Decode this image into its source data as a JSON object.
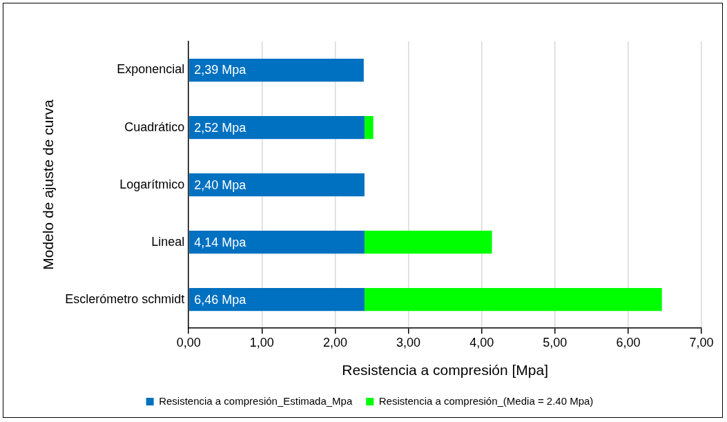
{
  "chart_data": {
    "type": "bar",
    "orientation": "horizontal",
    "stacked": true,
    "xlabel": "Resistencia a compresión [Mpa]",
    "ylabel": "Modelo de ajuste de curva",
    "categories": [
      "Exponencial",
      "Cuadrático",
      "Logarítmico",
      "Lineal",
      "Esclerómetro schmidt"
    ],
    "series": [
      {
        "name": "Resistencia a compresión_Estimada_Mpa",
        "color": "#0070c0",
        "values": [
          2.39,
          2.4,
          2.4,
          2.4,
          2.4
        ]
      },
      {
        "name": "Resistencia a compresión_(Media = 2.40 Mpa)",
        "color": "#00ff00",
        "values": [
          0,
          0.12,
          0,
          1.74,
          4.06
        ]
      }
    ],
    "totals": [
      "2,39 Mpa",
      "2,52 Mpa",
      "2,40 Mpa",
      "4,14 Mpa",
      "6,46 Mpa"
    ],
    "xlim": [
      0,
      7
    ],
    "xticks": [
      {
        "value": 0,
        "label": "0,00"
      },
      {
        "value": 1,
        "label": "1,00"
      },
      {
        "value": 2,
        "label": "2,00"
      },
      {
        "value": 3,
        "label": "3,00"
      },
      {
        "value": 4,
        "label": "4,00"
      },
      {
        "value": 5,
        "label": "5,00"
      },
      {
        "value": 6,
        "label": "6,00"
      },
      {
        "value": 7,
        "label": "7,00"
      }
    ],
    "grid": "x",
    "legend": "bottom"
  }
}
